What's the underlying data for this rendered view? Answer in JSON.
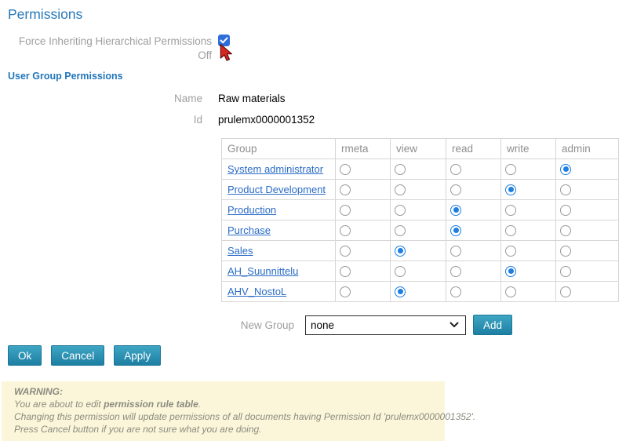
{
  "page": {
    "title": "Permissions"
  },
  "force_inherit": {
    "label": "Force Inheriting Hierarchical Permissions",
    "state_label": "Off",
    "checked": true
  },
  "sections": {
    "user_group_permissions": "User Group Permissions"
  },
  "fields": {
    "name_label": "Name",
    "name_value": "Raw materials",
    "id_label": "Id",
    "id_value": "prulemx0000001352"
  },
  "table": {
    "columns": [
      "Group",
      "rmeta",
      "view",
      "read",
      "write",
      "admin"
    ],
    "permission_keys": [
      "rmeta",
      "view",
      "read",
      "write",
      "admin"
    ],
    "rows": [
      {
        "group": "System administrator",
        "selected": "admin"
      },
      {
        "group": "Product Development",
        "selected": "write"
      },
      {
        "group": "Production",
        "selected": "read"
      },
      {
        "group": "Purchase",
        "selected": "read"
      },
      {
        "group": "Sales",
        "selected": "view"
      },
      {
        "group": "AH_Suunnittelu",
        "selected": "write"
      },
      {
        "group": "AHV_NostoL",
        "selected": "view"
      }
    ]
  },
  "new_group": {
    "label": "New Group",
    "selected_option": "none",
    "add_label": "Add"
  },
  "actions": {
    "ok": "Ok",
    "cancel": "Cancel",
    "apply": "Apply"
  },
  "warning": {
    "title": "WARNING:",
    "line1_prefix": "You are about to edit ",
    "line1_bold": "permission rule table",
    "line1_suffix": ".",
    "line2": "Changing this permission will update permissions of all documents having Permission Id 'prulemx0000001352'.",
    "line3": "Press Cancel button if you are not sure what you are doing."
  },
  "colors": {
    "title_blue": "#2878b9",
    "link_blue": "#2a6cc5",
    "radio_blue": "#1e7fe0",
    "checkbox_blue": "#2e6edb",
    "button_teal": "#1d7fa3",
    "warning_bg": "#fbf6d9"
  }
}
